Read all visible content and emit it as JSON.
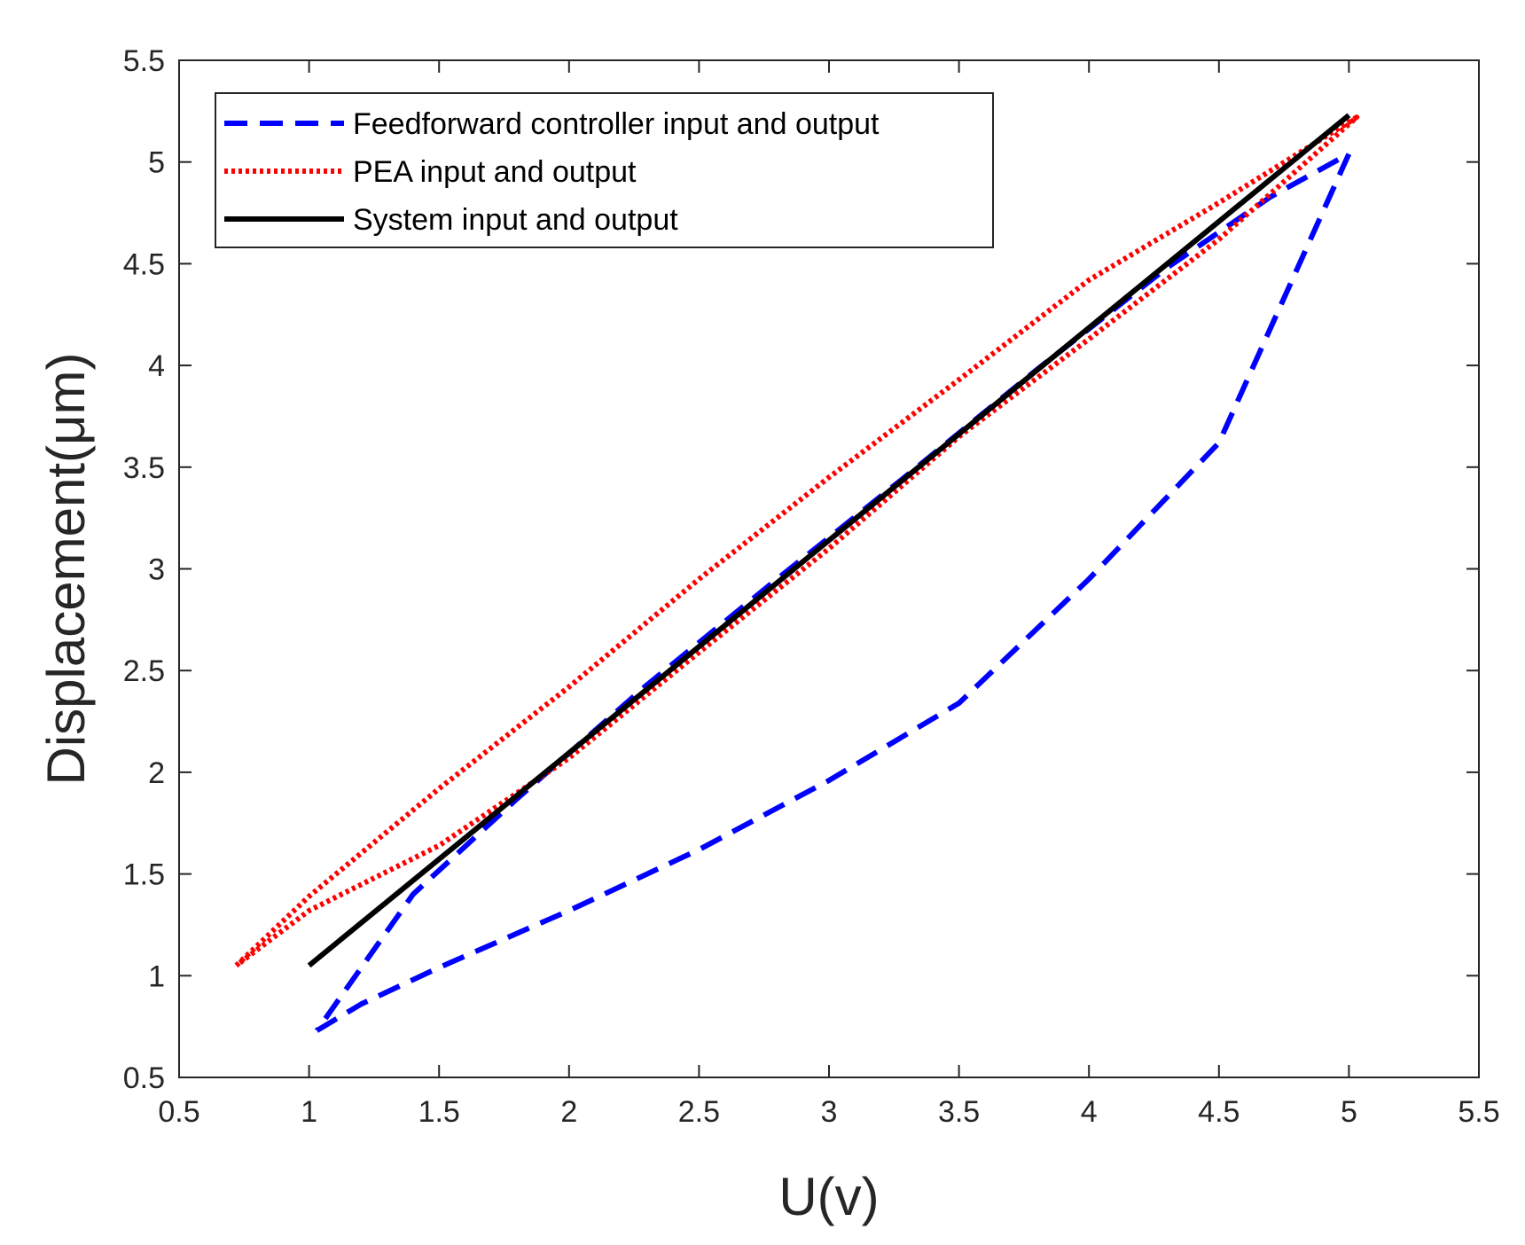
{
  "chart_data": {
    "type": "line",
    "title": "",
    "xlabel": "U(v)",
    "ylabel": "Displacement(μm)",
    "xlim": [
      0.5,
      5.5
    ],
    "ylim": [
      0.5,
      5.5
    ],
    "xticks": [
      "0.5",
      "1",
      "1.5",
      "2",
      "2.5",
      "3",
      "3.5",
      "4",
      "4.5",
      "5",
      "5.5"
    ],
    "yticks": [
      "0.5",
      "1",
      "1.5",
      "2",
      "2.5",
      "3",
      "3.5",
      "4",
      "4.5",
      "5",
      "5.5"
    ],
    "legend_position": "top-left",
    "series": [
      {
        "name": "Feedforward controller input and output",
        "style": "dashed",
        "color": "#0000ff",
        "x": [
          1.03,
          1.2,
          1.5,
          2.0,
          2.5,
          3.0,
          3.5,
          4.0,
          4.5,
          5.0,
          4.7,
          4.3,
          3.8,
          3.3,
          2.8,
          2.3,
          1.8,
          1.4,
          1.03
        ],
        "y": [
          0.73,
          0.86,
          1.04,
          1.32,
          1.62,
          1.96,
          2.34,
          2.95,
          3.62,
          5.04,
          4.83,
          4.48,
          3.98,
          3.46,
          2.95,
          2.43,
          1.87,
          1.4,
          0.73
        ]
      },
      {
        "name": "PEA input and output",
        "style": "dotted",
        "color": "#ff0000",
        "x": [
          0.72,
          1.0,
          1.5,
          2.0,
          2.5,
          3.0,
          3.5,
          4.0,
          4.5,
          5.03,
          4.5,
          4.0,
          3.5,
          3.0,
          2.5,
          2.0,
          1.5,
          1.0,
          0.72
        ],
        "y": [
          1.05,
          1.39,
          1.92,
          2.42,
          2.95,
          3.45,
          3.93,
          4.42,
          4.8,
          5.22,
          4.62,
          4.13,
          3.65,
          3.1,
          2.59,
          2.07,
          1.64,
          1.32,
          1.05
        ]
      },
      {
        "name": "System input and output",
        "style": "solid",
        "color": "#000000",
        "x": [
          1.0,
          5.0
        ],
        "y": [
          1.05,
          5.23
        ]
      }
    ]
  }
}
